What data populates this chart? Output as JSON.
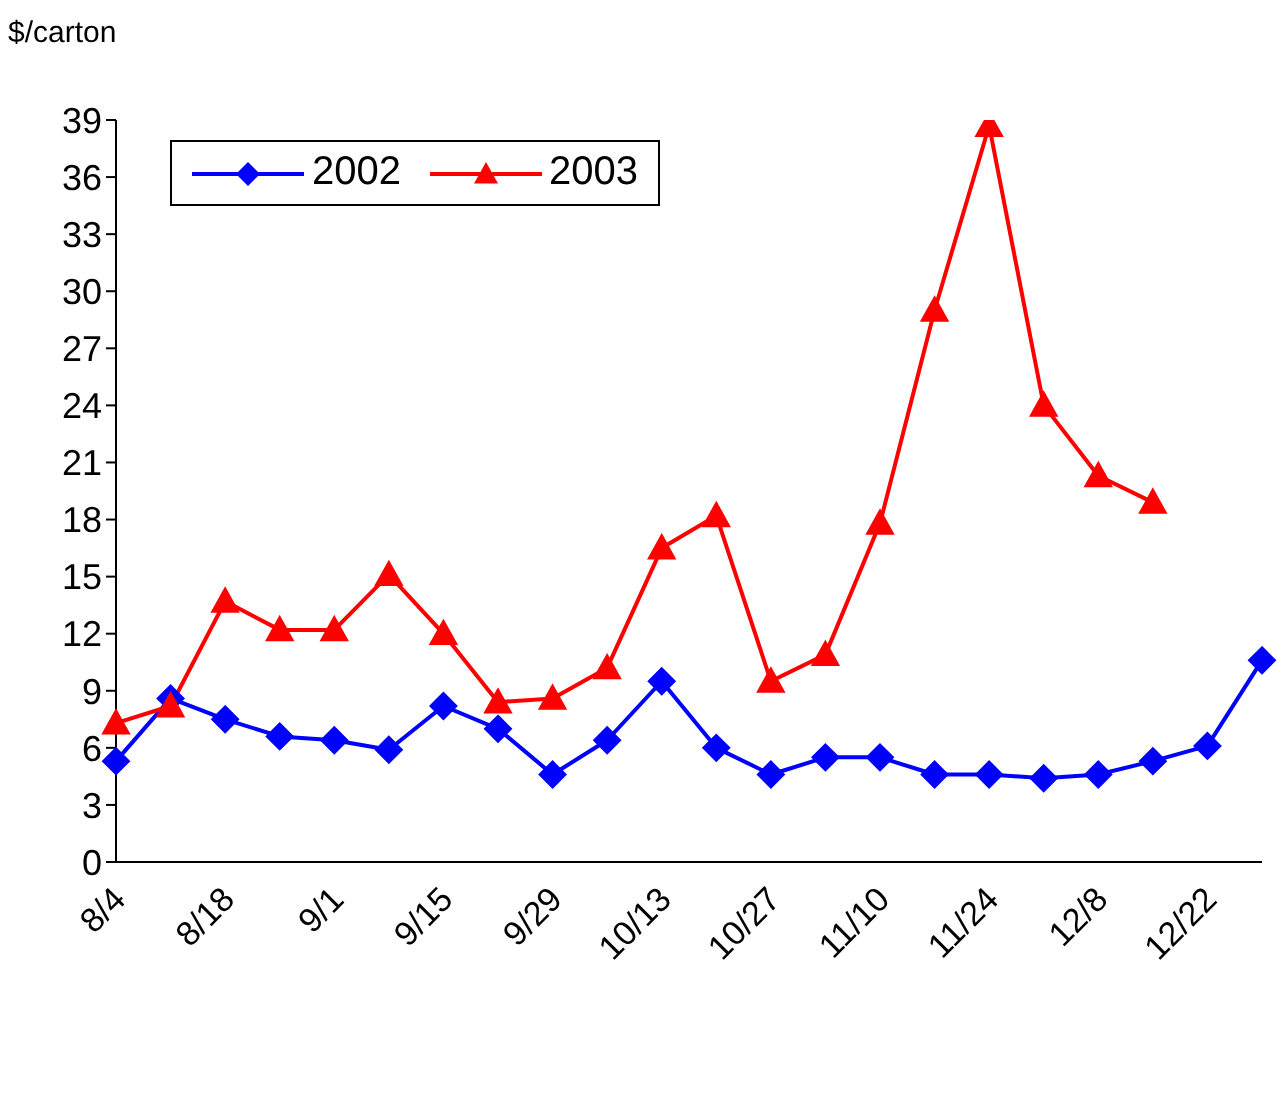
{
  "chart_data": {
    "type": "line",
    "ylabel": "$/carton",
    "categories": [
      "8/4",
      null,
      "8/18",
      null,
      "9/1",
      null,
      "9/15",
      null,
      "9/29",
      null,
      "10/13",
      null,
      "10/27",
      null,
      "11/10",
      null,
      "11/24",
      null,
      "12/8",
      null,
      "12/22",
      null
    ],
    "series": [
      {
        "name": "2002",
        "color": "#0000ff",
        "marker": "diamond",
        "values": [
          5.3,
          8.6,
          7.5,
          6.6,
          6.4,
          5.9,
          8.2,
          7.0,
          4.6,
          6.4,
          9.5,
          6.0,
          4.6,
          5.5,
          5.5,
          4.6,
          4.6,
          4.4,
          4.6,
          5.3,
          6.1,
          10.6
        ]
      },
      {
        "name": "2003",
        "color": "#ff0000",
        "marker": "triangle",
        "values": [
          7.3,
          8.2,
          13.7,
          12.2,
          12.2,
          15.1,
          12.0,
          8.4,
          8.6,
          10.2,
          16.5,
          18.2,
          9.5,
          10.9,
          17.8,
          29.0,
          38.7,
          24.0,
          20.3,
          18.9,
          null,
          null
        ]
      }
    ],
    "ylim": [
      0,
      39
    ],
    "yticks": [
      0,
      3,
      6,
      9,
      12,
      15,
      18,
      21,
      24,
      27,
      30,
      33,
      36,
      39
    ],
    "grid": false,
    "legend": "top left",
    "line_style": "solid"
  }
}
